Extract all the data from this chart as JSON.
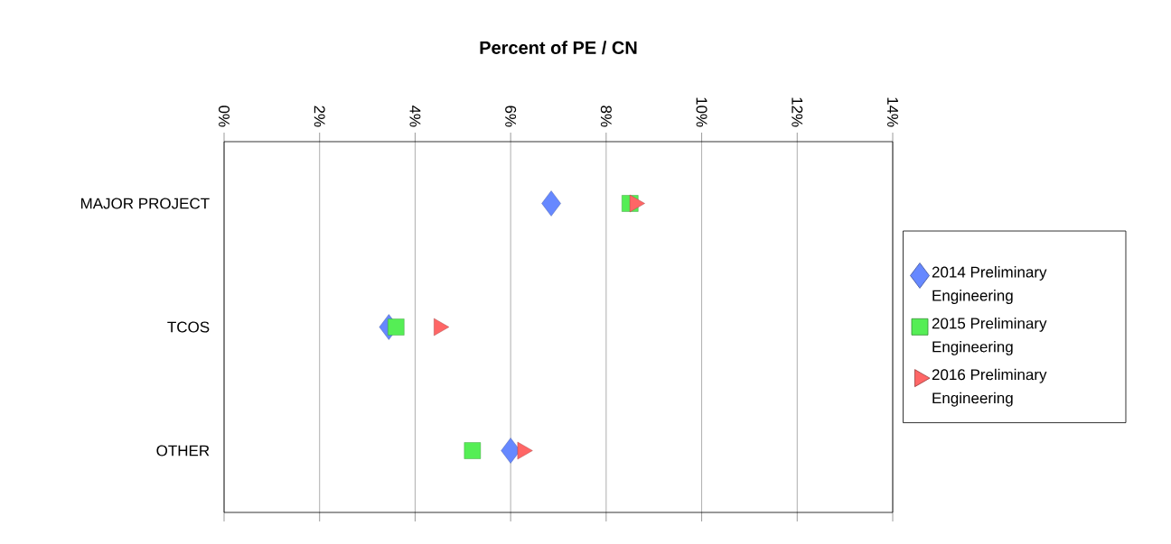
{
  "chart_data": {
    "type": "scatter",
    "orientation": "horizontal",
    "title": "Percent of PE / CN",
    "categories": [
      "MAJOR PROJECT",
      "TCOS",
      "OTHER"
    ],
    "xlim": [
      0,
      14
    ],
    "xticks": [
      {
        "value": 0,
        "label": "0%"
      },
      {
        "value": 2,
        "label": "2%"
      },
      {
        "value": 4,
        "label": "4%"
      },
      {
        "value": 6,
        "label": "6%"
      },
      {
        "value": 8,
        "label": "8%"
      },
      {
        "value": 10,
        "label": "10%"
      },
      {
        "value": 12,
        "label": "12%"
      },
      {
        "value": 14,
        "label": "14%"
      }
    ],
    "grid": "x",
    "legend": "right",
    "series": [
      {
        "name": "2014 Preliminary Engineering",
        "color": "#6688ff",
        "marker": "diamond",
        "values": [
          6.85,
          3.45,
          6.0
        ]
      },
      {
        "name": "2015 Preliminary Engineering",
        "color": "#55ee55",
        "marker": "square",
        "values": [
          8.5,
          3.6,
          5.2
        ]
      },
      {
        "name": "2016 Preliminary Engineering",
        "color": "#ff6666",
        "marker": "triangle",
        "values": [
          8.6,
          4.5,
          6.25
        ]
      }
    ]
  }
}
